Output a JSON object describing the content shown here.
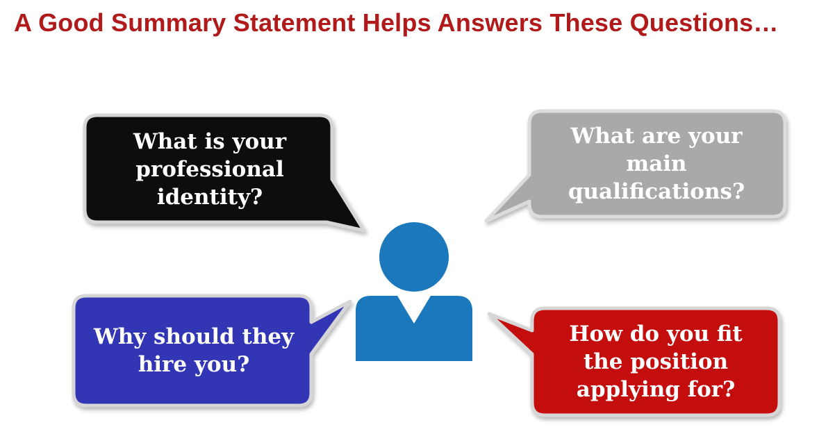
{
  "title": "A Good Summary Statement Helps  Answers These Questions…",
  "bubbles": {
    "identity": "What is your professional identity?",
    "qualifications": "What are your main qualifications?",
    "hire": "Why should they hire you?",
    "fit": "How do you fit the position applying for?"
  },
  "colors": {
    "title": "#b01a1a",
    "identity_bubble": "#080808",
    "qualifications_bubble": "#a9a9a9",
    "hire_bubble": "#3236b4",
    "fit_bubble": "#c41010",
    "person_icon": "#1b78bd"
  },
  "icons": {
    "center": "person-icon"
  }
}
